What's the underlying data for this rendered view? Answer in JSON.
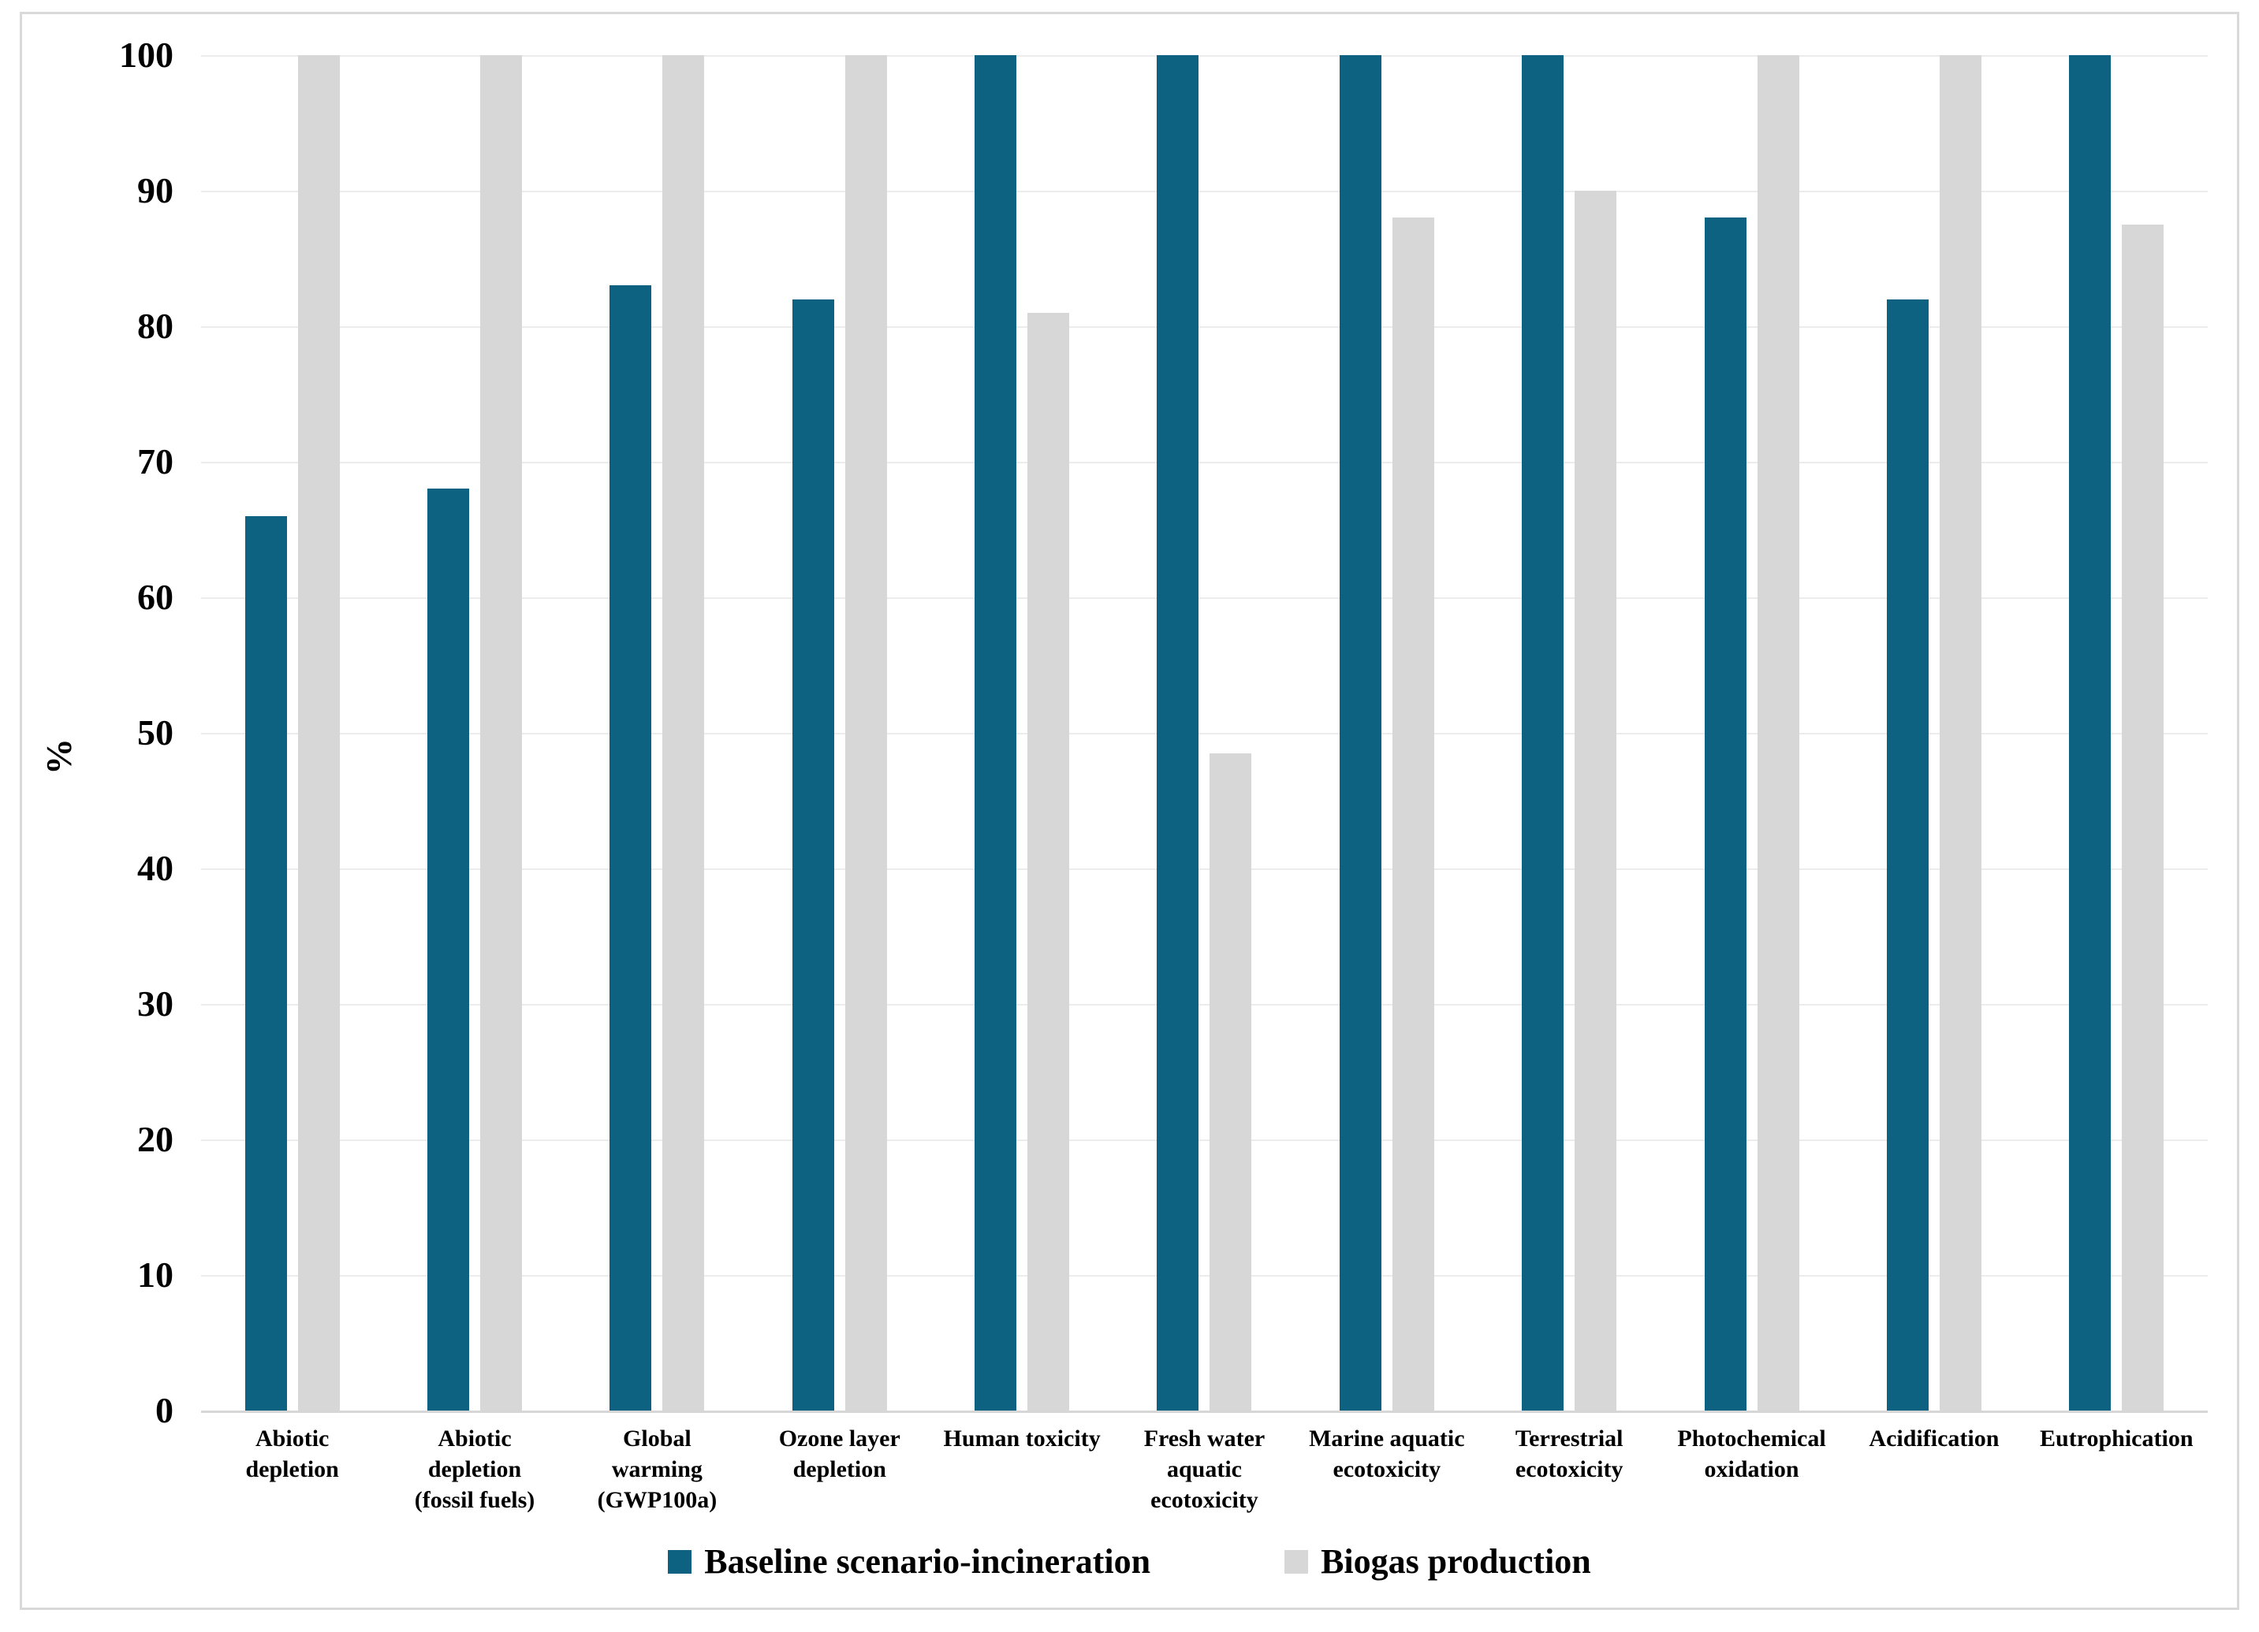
{
  "figure": {
    "background_color": "#ffffff",
    "frame_border_color": "#d9d9d9",
    "gridline_color": "#ececec",
    "baseline_color": "#d6d6d6",
    "text_color": "#000000"
  },
  "y_axis": {
    "title": "%",
    "ticks": [
      100,
      90,
      80,
      70,
      60,
      50,
      40,
      30,
      20,
      10,
      0
    ]
  },
  "legend": {
    "position": "bottom",
    "items": [
      {
        "label": "Baseline scenario-incineration",
        "color": "#0c6280"
      },
      {
        "label": "Biogas production",
        "color": "#d7d7d7"
      }
    ]
  },
  "chart_data": {
    "type": "bar",
    "title": "",
    "xlabel": "",
    "ylabel": "%",
    "ylim": [
      0,
      100
    ],
    "grid": "horizontal gridlines every 10",
    "legend_position": "bottom",
    "categories": [
      "Abiotic depletion",
      "Abiotic depletion (fossil fuels)",
      "Global warming (GWP100a)",
      "Ozone layer depletion",
      "Human toxicity",
      "Fresh water aquatic ecotoxicity",
      "Marine aquatic ecotoxicity",
      "Terrestrial ecotoxicity",
      "Photochemical oxidation",
      "Acidification",
      "Eutrophication"
    ],
    "category_display": [
      "Abiotic\ndepletion",
      "Abiotic\ndepletion\n(fossil fuels)",
      "Global\nwarming\n(GWP100a)",
      "Ozone layer\ndepletion",
      "Human toxicity",
      "Fresh water\naquatic\necotoxicity",
      "Marine aquatic\necotoxicity",
      "Terrestrial\necotoxicity",
      "Photochemical\noxidation",
      "Acidification",
      "Eutrophication"
    ],
    "series": [
      {
        "name": "Baseline scenario-incineration",
        "color": "#0c6280",
        "values": [
          66,
          68,
          83,
          82,
          100,
          100,
          100,
          100,
          88,
          82,
          100
        ]
      },
      {
        "name": "Biogas production",
        "color": "#d7d7d7",
        "values": [
          100,
          100,
          100,
          100,
          81,
          48.5,
          88,
          90,
          100,
          100,
          87.5
        ]
      }
    ]
  }
}
